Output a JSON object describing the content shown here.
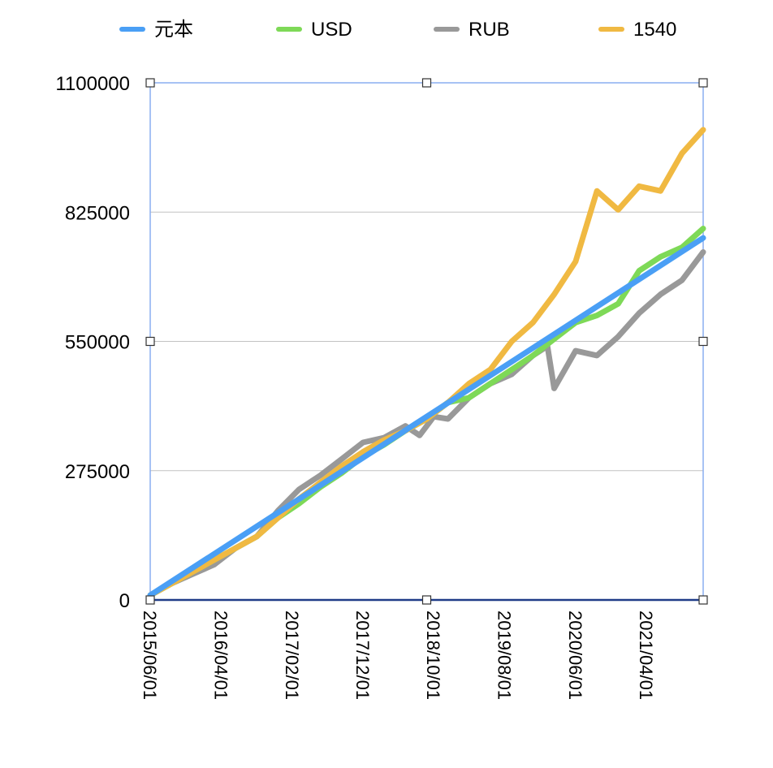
{
  "chart_data": {
    "type": "line",
    "title": "",
    "xlabel": "",
    "ylabel": "",
    "ylim": [
      0,
      1100000
    ],
    "y_ticks": [
      "0",
      "275000",
      "550000",
      "825000",
      "1100000"
    ],
    "x_ticks": [
      "2015/06/01",
      "2016/04/01",
      "2017/02/01",
      "2017/12/01",
      "2018/10/01",
      "2019/08/01",
      "2020/06/01",
      "2021/04/01"
    ],
    "x_range": [
      "2015/06/01",
      "2021/12/01"
    ],
    "grid": "horizontal",
    "legend_position": "top",
    "series": [
      {
        "name": "元本",
        "color": "#4a9ff5",
        "points": [
          [
            "2015/06/01",
            10000
          ],
          [
            "2021/12/01",
            770000
          ]
        ]
      },
      {
        "name": "USD",
        "color": "#7ed957",
        "points": [
          [
            "2015/06/01",
            10000
          ],
          [
            "2015/09/01",
            35000
          ],
          [
            "2015/12/01",
            60000
          ],
          [
            "2016/03/01",
            85000
          ],
          [
            "2016/06/01",
            110000
          ],
          [
            "2016/09/01",
            135000
          ],
          [
            "2016/12/01",
            175000
          ],
          [
            "2017/03/01",
            205000
          ],
          [
            "2017/06/01",
            240000
          ],
          [
            "2017/09/01",
            270000
          ],
          [
            "2017/12/01",
            305000
          ],
          [
            "2018/03/01",
            330000
          ],
          [
            "2018/06/01",
            360000
          ],
          [
            "2018/09/01",
            385000
          ],
          [
            "2018/12/01",
            420000
          ],
          [
            "2019/03/01",
            430000
          ],
          [
            "2019/06/01",
            460000
          ],
          [
            "2019/09/01",
            490000
          ],
          [
            "2019/12/01",
            520000
          ],
          [
            "2020/03/01",
            555000
          ],
          [
            "2020/06/01",
            590000
          ],
          [
            "2020/09/01",
            605000
          ],
          [
            "2020/12/01",
            630000
          ],
          [
            "2021/03/01",
            700000
          ],
          [
            "2021/06/01",
            730000
          ],
          [
            "2021/09/01",
            750000
          ],
          [
            "2021/12/01",
            790000
          ]
        ]
      },
      {
        "name": "RUB",
        "color": "#999999",
        "points": [
          [
            "2015/06/01",
            10000
          ],
          [
            "2015/09/01",
            35000
          ],
          [
            "2015/12/01",
            55000
          ],
          [
            "2016/03/01",
            75000
          ],
          [
            "2016/06/01",
            110000
          ],
          [
            "2016/09/01",
            135000
          ],
          [
            "2016/12/01",
            190000
          ],
          [
            "2017/03/01",
            235000
          ],
          [
            "2017/06/01",
            265000
          ],
          [
            "2017/09/01",
            300000
          ],
          [
            "2017/12/01",
            335000
          ],
          [
            "2018/03/01",
            345000
          ],
          [
            "2018/06/01",
            370000
          ],
          [
            "2018/08/01",
            350000
          ],
          [
            "2018/10/01",
            390000
          ],
          [
            "2018/12/01",
            385000
          ],
          [
            "2019/03/01",
            430000
          ],
          [
            "2019/06/01",
            460000
          ],
          [
            "2019/09/01",
            480000
          ],
          [
            "2019/12/01",
            520000
          ],
          [
            "2020/02/01",
            540000
          ],
          [
            "2020/03/01",
            450000
          ],
          [
            "2020/06/01",
            530000
          ],
          [
            "2020/09/01",
            520000
          ],
          [
            "2020/12/01",
            560000
          ],
          [
            "2021/03/01",
            610000
          ],
          [
            "2021/06/01",
            650000
          ],
          [
            "2021/09/01",
            680000
          ],
          [
            "2021/12/01",
            740000
          ]
        ]
      },
      {
        "name": "1540",
        "color": "#f0b942",
        "points": [
          [
            "2015/06/01",
            10000
          ],
          [
            "2015/09/01",
            35000
          ],
          [
            "2015/12/01",
            60000
          ],
          [
            "2016/03/01",
            85000
          ],
          [
            "2016/06/01",
            110000
          ],
          [
            "2016/09/01",
            135000
          ],
          [
            "2016/12/01",
            175000
          ],
          [
            "2017/03/01",
            215000
          ],
          [
            "2017/06/01",
            250000
          ],
          [
            "2017/09/01",
            285000
          ],
          [
            "2017/12/01",
            315000
          ],
          [
            "2018/03/01",
            340000
          ],
          [
            "2018/06/01",
            360000
          ],
          [
            "2018/09/01",
            385000
          ],
          [
            "2018/12/01",
            420000
          ],
          [
            "2019/03/01",
            460000
          ],
          [
            "2019/06/01",
            490000
          ],
          [
            "2019/09/01",
            550000
          ],
          [
            "2019/12/01",
            590000
          ],
          [
            "2020/03/01",
            650000
          ],
          [
            "2020/06/01",
            720000
          ],
          [
            "2020/09/01",
            870000
          ],
          [
            "2020/12/01",
            830000
          ],
          [
            "2021/03/01",
            880000
          ],
          [
            "2021/06/01",
            870000
          ],
          [
            "2021/09/01",
            950000
          ],
          [
            "2021/12/01",
            1000000
          ]
        ]
      }
    ]
  }
}
